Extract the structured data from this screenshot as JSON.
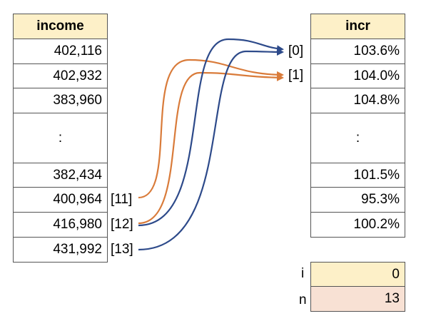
{
  "income": {
    "header": "income",
    "rows": [
      "402,116",
      "402,932",
      "383,960",
      ":",
      "382,434",
      "400,964",
      "416,980",
      "431,992"
    ],
    "indices": [
      "[11]",
      "[12]",
      "[13]"
    ]
  },
  "incr": {
    "header": "incr",
    "rows": [
      "103.6%",
      "104.0%",
      "104.8%",
      ":",
      "101.5%",
      "95.3%",
      "100.2%"
    ],
    "indices": [
      "[0]",
      "[1]"
    ]
  },
  "vars": {
    "i": {
      "label": "i",
      "value": "0"
    },
    "n": {
      "label": "n",
      "value": "13"
    }
  },
  "colors": {
    "header_fill": "#fdf0c8",
    "i_fill": "#fdf0c8",
    "n_fill": "#f8e1d4",
    "orange_arrow": "#d97b3a",
    "blue_arrow": "#2d4a8a"
  }
}
